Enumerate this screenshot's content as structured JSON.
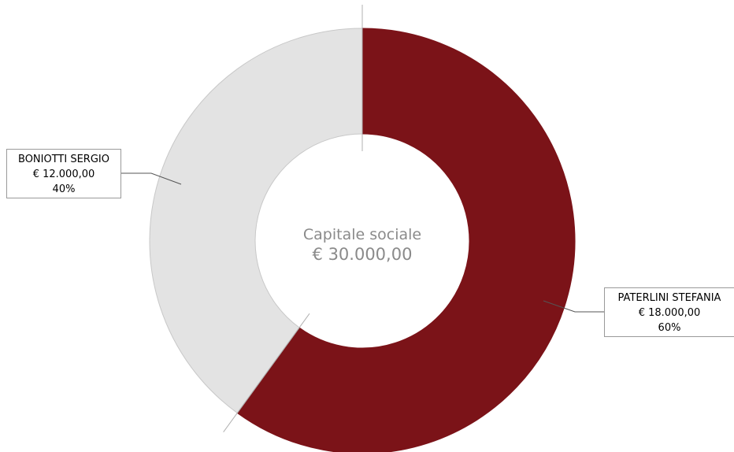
{
  "chart_data": {
    "type": "pie",
    "donut": true,
    "center": {
      "title": "Capitale sociale",
      "value": "€ 30.000,00"
    },
    "total": 30000,
    "slices": [
      {
        "name": "PATERLINI STEFANIA",
        "value": 18000,
        "value_label": "€ 18.000,00",
        "percent": 60,
        "percent_label": "60%",
        "color": "#7b1318"
      },
      {
        "name": "BONIOTTI SERGIO",
        "value": 12000,
        "value_label": "€ 12.000,00",
        "percent": 40,
        "percent_label": "40%",
        "color": "#e3e3e3"
      }
    ],
    "legend": "none"
  }
}
